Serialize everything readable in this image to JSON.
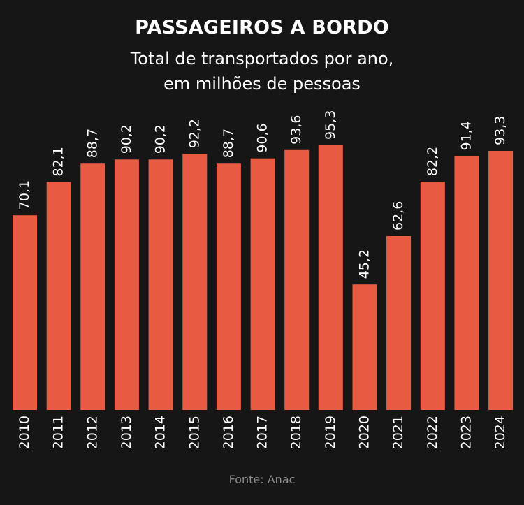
{
  "header": {
    "title": "PASSAGEIROS A BORDO",
    "subtitle_line1": "Total de transportados por ano,",
    "subtitle_line2": "em milhões de pessoas"
  },
  "footer": {
    "source": "Fonte: Anac"
  },
  "colors": {
    "background": "#161616",
    "bar": "#e85a42",
    "text": "#ffffff",
    "source_text": "#8c8c8c"
  },
  "chart_data": {
    "type": "bar",
    "title": "PASSAGEIROS A BORDO",
    "subtitle": "Total de transportados por ano, em milhões de pessoas",
    "xlabel": "",
    "ylabel": "",
    "ylim": [
      0,
      100
    ],
    "grid": false,
    "categories": [
      "2010",
      "2011",
      "2012",
      "2013",
      "2014",
      "2015",
      "2016",
      "2017",
      "2018",
      "2019",
      "2020",
      "2021",
      "2022",
      "2023",
      "2024"
    ],
    "values": [
      70.1,
      82.1,
      88.7,
      90.2,
      90.2,
      92.2,
      88.7,
      90.6,
      93.6,
      95.3,
      45.2,
      62.6,
      82.2,
      91.4,
      93.3
    ],
    "labels": [
      "70,1",
      "82,1",
      "88,7",
      "90,2",
      "90,2",
      "92,2",
      "88,7",
      "90,6",
      "93,6",
      "95,3",
      "45,2",
      "62,6",
      "82,2",
      "91,4",
      "93,3"
    ]
  }
}
